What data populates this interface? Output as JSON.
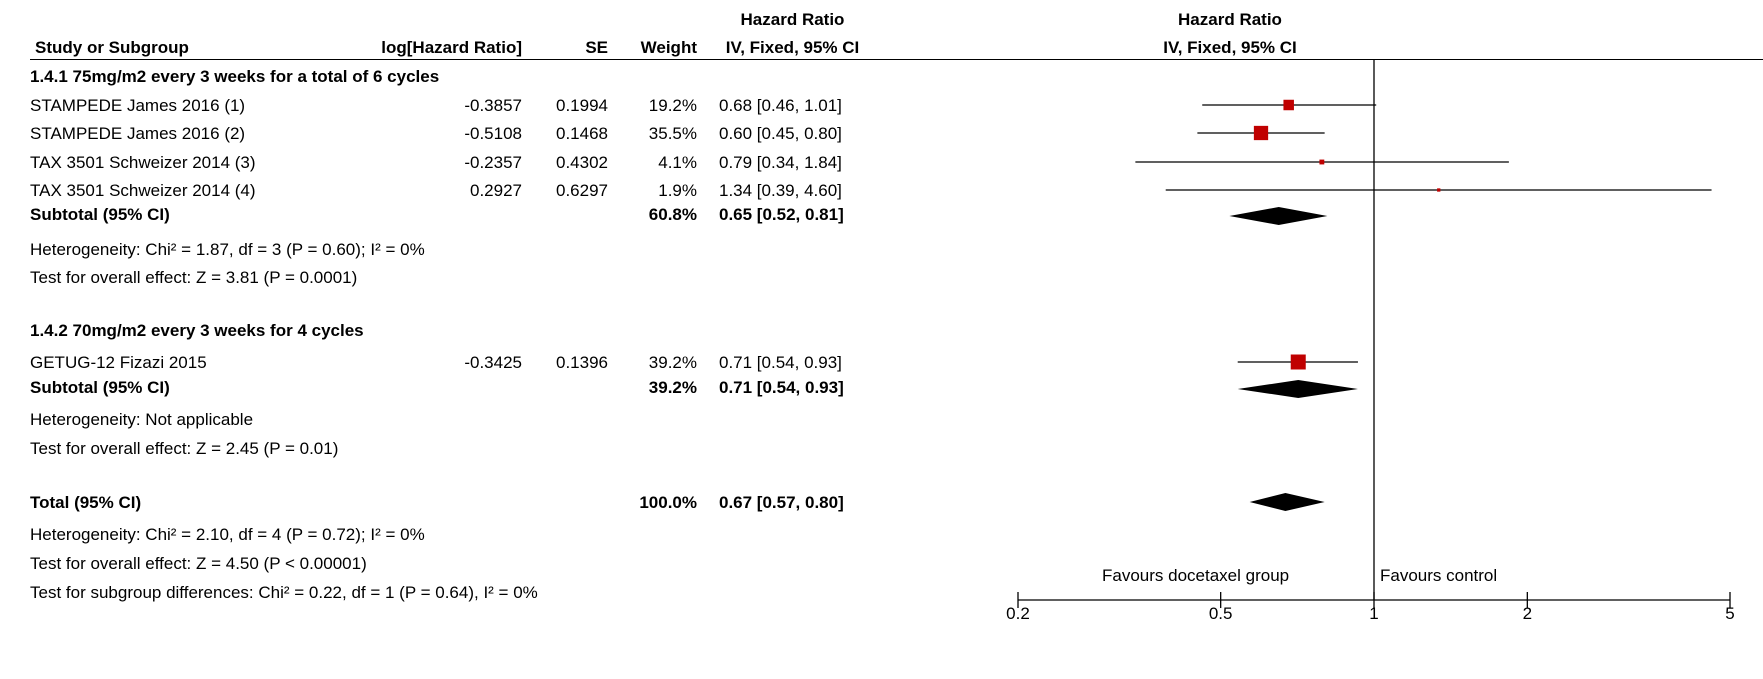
{
  "headers": {
    "study": "Study or Subgroup",
    "loghr": "log[Hazard Ratio]",
    "se": "SE",
    "weight": "Weight",
    "hr_top": "Hazard Ratio",
    "hr_sub": "IV, Fixed, 95% CI",
    "plot_top": "Hazard Ratio",
    "plot_sub": "IV, Fixed, 95% CI"
  },
  "groups": [
    {
      "title": "1.4.1 75mg/m2 every 3 weeks for a total of 6 cycles",
      "studies": [
        {
          "name": "STAMPEDE James 2016 (1)",
          "loghr": "-0.3857",
          "se": "0.1994",
          "weight": "19.2%",
          "ci": "0.68 [0.46, 1.01]"
        },
        {
          "name": "STAMPEDE James 2016 (2)",
          "loghr": "-0.5108",
          "se": "0.1468",
          "weight": "35.5%",
          "ci": "0.60 [0.45, 0.80]"
        },
        {
          "name": "TAX 3501 Schweizer 2014 (3)",
          "loghr": "-0.2357",
          "se": "0.4302",
          "weight": "4.1%",
          "ci": "0.79 [0.34, 1.84]"
        },
        {
          "name": "TAX 3501 Schweizer 2014 (4)",
          "loghr": "0.2927",
          "se": "0.6297",
          "weight": "1.9%",
          "ci": "1.34 [0.39, 4.60]"
        }
      ],
      "subtotal_label": "Subtotal (95% CI)",
      "subtotal_weight": "60.8%",
      "subtotal_ci": "0.65 [0.52, 0.81]",
      "heterogeneity": "Heterogeneity: Chi² = 1.87, df = 3 (P = 0.60); I² = 0%",
      "overall": "Test for overall effect: Z = 3.81 (P = 0.0001)"
    },
    {
      "title": "1.4.2 70mg/m2 every 3 weeks for 4 cycles",
      "studies": [
        {
          "name": "GETUG-12 Fizazi 2015",
          "loghr": "-0.3425",
          "se": "0.1396",
          "weight": "39.2%",
          "ci": "0.71 [0.54, 0.93]"
        }
      ],
      "subtotal_label": "Subtotal (95% CI)",
      "subtotal_weight": "39.2%",
      "subtotal_ci": "0.71 [0.54, 0.93]",
      "heterogeneity": "Heterogeneity: Not applicable",
      "overall": "Test for overall effect: Z = 2.45 (P = 0.01)"
    }
  ],
  "total": {
    "label": "Total (95% CI)",
    "weight": "100.0%",
    "ci": "0.67 [0.57, 0.80]",
    "heterogeneity": "Heterogeneity: Chi² = 2.10, df = 4 (P = 0.72); I² = 0%",
    "overall": "Test for overall effect: Z = 4.50 (P < 0.00001)",
    "subgroup": "Test for subgroup differences: Chi² = 0.22, df = 1 (P = 0.64), I² = 0%"
  },
  "axis_labels": {
    "favours_left": "Favours docetaxel group",
    "favours_right": "Favours control"
  },
  "colors": {
    "square": "#c00000",
    "line": "#000000",
    "diamond": "#000000"
  },
  "chart_data": {
    "type": "forest",
    "x_scale": "log",
    "xlim": [
      0.2,
      5
    ],
    "ticks": [
      0.2,
      0.5,
      1,
      2,
      5
    ],
    "tick_labels": [
      "0.2",
      "0.5",
      "1",
      "2",
      "5"
    ],
    "reference_line": 1,
    "studies": [
      {
        "name": "STAMPEDE James 2016 (1)",
        "hr": 0.68,
        "lower": 0.46,
        "upper": 1.01,
        "weight": 19.2
      },
      {
        "name": "STAMPEDE James 2016 (2)",
        "hr": 0.6,
        "lower": 0.45,
        "upper": 0.8,
        "weight": 35.5
      },
      {
        "name": "TAX 3501 Schweizer 2014 (3)",
        "hr": 0.79,
        "lower": 0.34,
        "upper": 1.84,
        "weight": 4.1
      },
      {
        "name": "TAX 3501 Schweizer 2014 (4)",
        "hr": 1.34,
        "lower": 0.39,
        "upper": 4.6,
        "weight": 1.9
      },
      {
        "name": "GETUG-12 Fizazi 2015",
        "hr": 0.71,
        "lower": 0.54,
        "upper": 0.93,
        "weight": 39.2
      }
    ],
    "diamonds": [
      {
        "name": "Subtotal 1.4.1",
        "hr": 0.65,
        "lower": 0.52,
        "upper": 0.81
      },
      {
        "name": "Subtotal 1.4.2",
        "hr": 0.71,
        "lower": 0.54,
        "upper": 0.93
      },
      {
        "name": "Total",
        "hr": 0.67,
        "lower": 0.57,
        "upper": 0.8
      }
    ]
  }
}
